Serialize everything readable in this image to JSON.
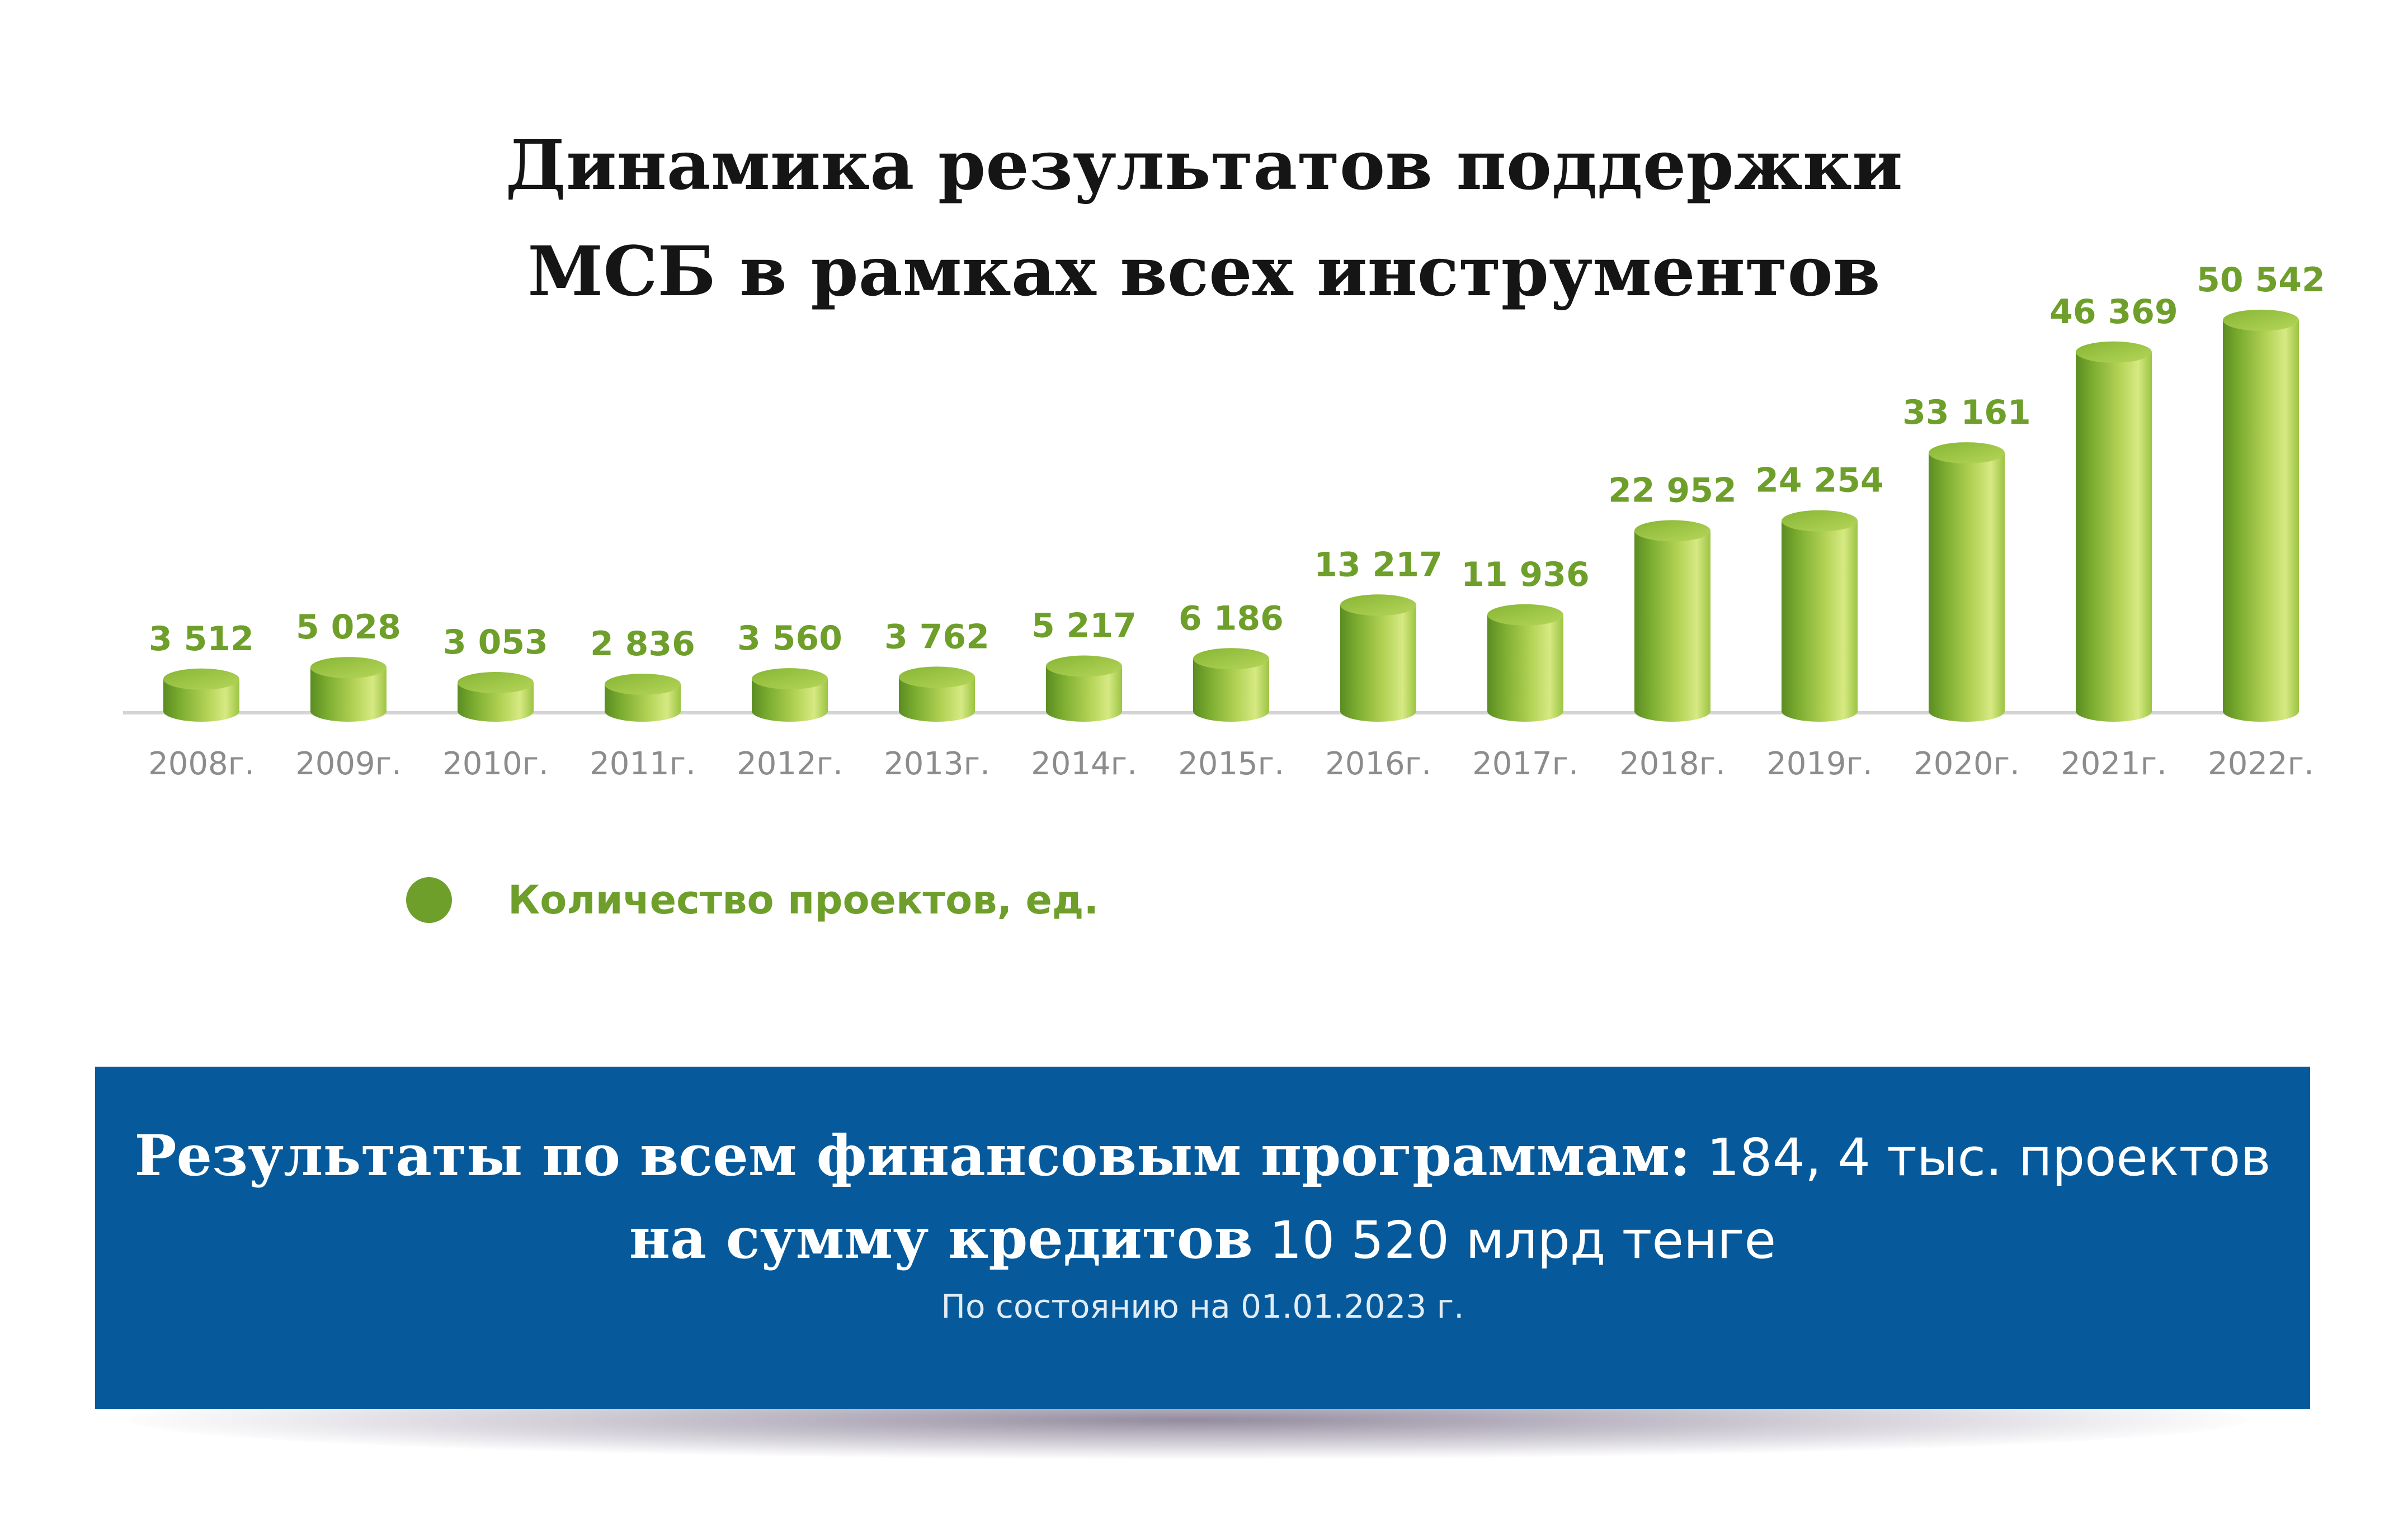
{
  "chart_data": {
    "type": "bar",
    "title": "Динамика результатов поддержки МСБ в рамках всех инструментов",
    "title_lines": [
      "Динамика результатов поддержки",
      "МСБ в рамках всех инструментов"
    ],
    "categories": [
      "2008г.",
      "2009г.",
      "2010г.",
      "2011г.",
      "2012г.",
      "2013г.",
      "2014г.",
      "2015г.",
      "2016г.",
      "2017г.",
      "2018г.",
      "2019г.",
      "2020г.",
      "2021г.",
      "2022г."
    ],
    "series": [
      {
        "name": "Количество проектов, ед.",
        "values": [
          3512,
          5028,
          3053,
          2836,
          3560,
          3762,
          5217,
          6186,
          13217,
          11936,
          22952,
          24254,
          33161,
          46369,
          50542
        ]
      }
    ],
    "value_labels": [
      "3 512",
      "5 028",
      "3 053",
      "2 836",
      "3 560",
      "3 762",
      "5 217",
      "6 186",
      "13 217",
      "11 936",
      "22 952",
      "24 254",
      "33 161",
      "46 369",
      "50 542"
    ],
    "xlabel": "",
    "ylabel": "",
    "grid": false,
    "legend_position": "bottom-left",
    "bar_style": "3d-cylinder",
    "colors": {
      "bar_dark": "#5f9224",
      "bar_light": "#cfe47a",
      "bar_top": "#9bc63e",
      "value_label": "#6f9f2b",
      "tick_label": "#8c8c8c",
      "baseline": "#d4d4d4"
    }
  },
  "banner": {
    "line1_strong": "Результаты по всем финансовым программам:",
    "line1_normal": " 184, 4 тыс. проектов",
    "line2_strong": "на сумму кредитов",
    "line2_normal": " 10 520 млрд тенге",
    "note": "По состоянию на 01.01.2023 г.",
    "background": "#065a9c"
  }
}
